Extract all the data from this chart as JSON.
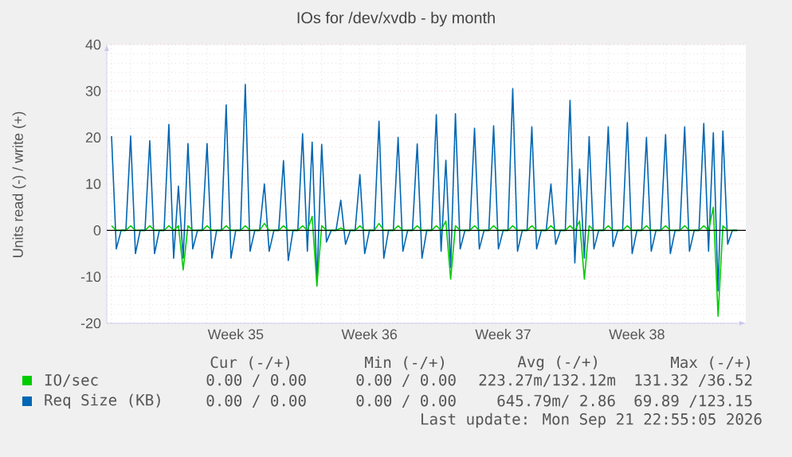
{
  "chart_data": {
    "type": "line",
    "title": "IOs for /dev/xvdb - by month",
    "ylabel": "Units read (-) / write (+)",
    "categories": [
      null,
      null,
      null,
      null,
      null,
      null,
      null,
      null,
      null,
      null,
      null,
      null,
      null,
      null,
      null,
      null,
      null,
      null,
      null,
      null,
      null,
      null,
      null,
      null,
      null,
      null,
      "Week 35",
      null,
      null,
      null,
      null,
      null,
      null,
      null,
      null,
      null,
      null,
      null,
      null,
      null,
      null,
      null,
      null,
      null,
      null,
      null,
      null,
      null,
      null,
      null,
      null,
      null,
      null,
      null,
      "Week 36",
      null,
      null,
      null,
      null,
      null,
      null,
      null,
      null,
      null,
      null,
      null,
      null,
      null,
      null,
      null,
      null,
      null,
      null,
      null,
      null,
      null,
      null,
      null,
      null,
      null,
      null,
      null,
      "Week 37",
      null,
      null,
      null,
      null,
      null,
      null,
      null,
      null,
      null,
      null,
      null,
      null,
      null,
      null,
      null,
      null,
      null,
      null,
      null,
      null,
      null,
      null,
      null,
      null,
      null,
      null,
      null,
      "Week 38",
      null,
      null,
      null,
      null,
      null,
      null,
      null,
      null,
      null,
      null,
      null,
      null,
      null,
      null,
      null,
      null,
      null,
      null,
      null,
      null,
      null
    ],
    "series": [
      {
        "name": "IO/sec",
        "color": "#00cc00",
        "values": [
          1,
          0,
          0,
          0,
          1,
          0,
          0,
          0,
          1,
          0,
          0,
          0,
          1,
          0,
          1,
          -8.5,
          1,
          0,
          0,
          0,
          1,
          0,
          0,
          0,
          1,
          0,
          0,
          0,
          1,
          0,
          0,
          0,
          1.5,
          0,
          0,
          0,
          1,
          0,
          0,
          0,
          1,
          0,
          3,
          -12,
          1,
          0,
          0,
          0,
          0.5,
          0,
          0,
          0,
          1,
          0,
          0,
          0,
          1.5,
          0,
          0,
          0,
          1,
          0,
          0,
          0,
          1,
          0,
          0,
          0,
          1,
          0,
          2,
          -10.5,
          1,
          0,
          0,
          0,
          1,
          0,
          0,
          0,
          1,
          0,
          0,
          0,
          1,
          0,
          0,
          0,
          1,
          0,
          0,
          0,
          1,
          0,
          0,
          0,
          1,
          0,
          2,
          -10.5,
          1,
          0,
          0,
          0,
          1,
          0,
          0,
          0,
          1,
          0,
          0,
          0,
          1,
          0,
          0,
          0,
          1,
          0,
          0,
          0,
          1,
          0,
          0,
          0,
          1,
          0,
          5,
          -18.5,
          1,
          0,
          0,
          0
        ]
      },
      {
        "name": "Req Size (KB)",
        "color": "#0066b3",
        "values": [
          20.3,
          -4,
          0,
          0,
          20.3,
          -5,
          0,
          0,
          19.3,
          -5,
          0,
          0,
          22.8,
          -6,
          9.5,
          -6,
          18.7,
          -4,
          0,
          0,
          18.7,
          -6,
          0,
          0,
          27,
          -6,
          0,
          0,
          31.4,
          -4.5,
          0,
          0,
          10,
          -4.5,
          0,
          0,
          15,
          -6.5,
          0,
          0,
          20.8,
          -4.5,
          19,
          -11,
          18.5,
          -2.5,
          0,
          0,
          6.5,
          -3,
          0,
          0,
          12,
          -5,
          0,
          0,
          23.5,
          -6,
          0,
          0,
          20,
          -4.5,
          0,
          0,
          18.6,
          -6,
          0,
          0,
          24.9,
          -4.5,
          15.1,
          -8,
          25.1,
          -4,
          0,
          0,
          22,
          -4,
          0,
          0,
          22.5,
          -4,
          0,
          0,
          30.5,
          -4.5,
          0,
          0,
          22.3,
          -4,
          0,
          0,
          10,
          -3,
          0,
          0,
          28,
          -7,
          13.2,
          -6,
          20.2,
          -4,
          0,
          0,
          22.3,
          -3.5,
          0,
          0,
          23.2,
          -5,
          0,
          0,
          20,
          -4.5,
          0,
          0,
          20.6,
          -5,
          0,
          0,
          22.3,
          -4.5,
          0,
          0,
          23,
          -4.5,
          21,
          -13,
          21.4,
          -3,
          0,
          0
        ]
      }
    ],
    "ylim": [
      -20,
      40
    ],
    "yticks": [
      -20,
      -10,
      0,
      10,
      20,
      30,
      40
    ],
    "ref_lines": [
      {
        "axis": "y",
        "value": 0,
        "color": "#000000"
      }
    ],
    "grid": true,
    "legend": "bottom",
    "marker": "none",
    "line_style": "solid",
    "annotations": [
      "Cur (-/+)",
      "Min (-/+)",
      "Avg (-/+)",
      "Max (-/+)",
      "0.00 / 0.00",
      "0.00 / 0.00",
      "223.27m/132.12m",
      "131.32 /36.52",
      "0.00 / 0.00",
      "0.00 / 0.00",
      "645.79m/ 2.86",
      "69.89 /123.15",
      "Last update: Mon Sep 21 22:55:05 2026"
    ]
  }
}
